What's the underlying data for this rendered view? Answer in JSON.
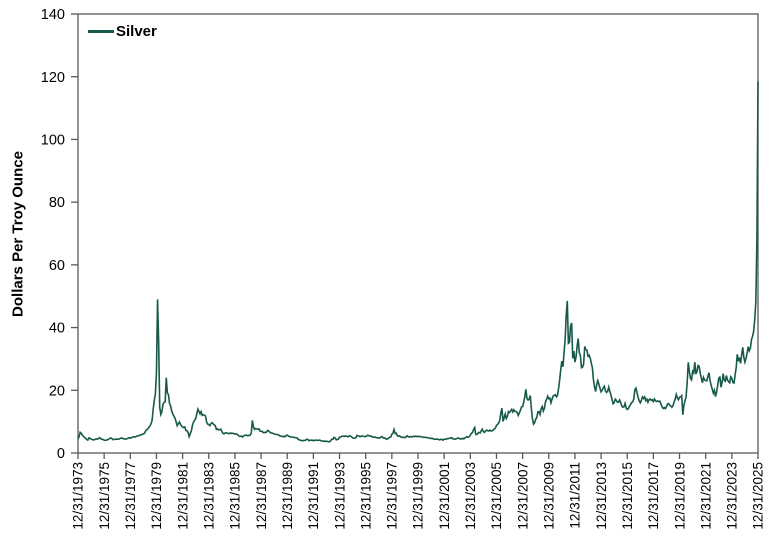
{
  "chart_data": {
    "type": "line",
    "title": "",
    "xlabel": "",
    "ylabel": "Dollars Per Troy Ounce",
    "legend_position": "top-left-inside",
    "grid": false,
    "background_color": "#ffffff",
    "axis_color": "#595959",
    "text_color": "#000000",
    "ylim": [
      0,
      140
    ],
    "yticks": [
      0,
      20,
      40,
      60,
      80,
      100,
      120,
      140
    ],
    "xtick_labels": [
      "12/31/1973",
      "12/31/1975",
      "12/31/1977",
      "12/31/1979",
      "12/31/1981",
      "12/31/1983",
      "12/31/1985",
      "12/31/1987",
      "12/31/1989",
      "12/31/1991",
      "12/31/1993",
      "12/31/1995",
      "12/31/1997",
      "12/31/1999",
      "12/31/2001",
      "12/31/2003",
      "12/31/2005",
      "12/31/2007",
      "12/31/2009",
      "12/31/2011",
      "12/31/2013",
      "12/31/2015",
      "12/31/2017",
      "12/31/2019",
      "12/31/2021",
      "12/31/2023",
      "12/31/2025"
    ],
    "x_start_label": "12/31/1973",
    "x_end_label": "12/31/2025",
    "points_per_year": 12,
    "series": [
      {
        "name": "Silver",
        "color": "#17594a",
        "values": [
          4.5,
          5.2,
          6.6,
          6.3,
          5.7,
          5.3,
          4.9,
          4.7,
          4.3,
          4.1,
          4.8,
          4.7,
          4.4,
          4.3,
          4.2,
          4.2,
          4.4,
          4.5,
          4.4,
          4.7,
          4.9,
          4.5,
          4.4,
          4.3,
          4.1,
          4.0,
          4.1,
          4.2,
          4.4,
          4.6,
          4.8,
          4.6,
          4.3,
          4.3,
          4.4,
          4.4,
          4.4,
          4.4,
          4.5,
          4.7,
          4.8,
          4.7,
          4.5,
          4.5,
          4.4,
          4.6,
          4.7,
          4.9,
          4.7,
          4.9,
          5.0,
          5.2,
          5.1,
          5.2,
          5.4,
          5.4,
          5.6,
          5.6,
          5.9,
          5.9,
          6.1,
          6.3,
          7.0,
          7.4,
          7.6,
          8.2,
          8.6,
          9.3,
          10.4,
          14.0,
          16.8,
          18.8,
          25.5,
          49.0,
          35.5,
          14.5,
          12.3,
          13.2,
          15.6,
          16.1,
          16.4,
          24.0,
          19.2,
          18.6,
          15.8,
          15.0,
          13.4,
          12.4,
          11.8,
          11.1,
          10.0,
          8.7,
          9.3,
          9.9,
          9.2,
          8.6,
          8.3,
          8.1,
          8.3,
          7.2,
          7.1,
          6.5,
          5.2,
          6.2,
          7.0,
          8.8,
          9.9,
          10.4,
          11.0,
          12.4,
          14.0,
          13.3,
          12.5,
          13.2,
          12.0,
          12.2,
          12.1,
          11.8,
          9.9,
          9.2,
          9.1,
          8.7,
          9.4,
          9.7,
          9.3,
          9.0,
          8.7,
          7.5,
          7.7,
          7.4,
          7.4,
          7.6,
          6.9,
          6.3,
          6.1,
          6.4,
          6.5,
          6.3,
          6.2,
          6.2,
          6.4,
          6.2,
          6.3,
          6.2,
          6.0,
          6.1,
          6.0,
          5.7,
          5.3,
          5.3,
          5.4,
          5.1,
          5.4,
          5.7,
          5.7,
          5.6,
          5.5,
          5.6,
          5.7,
          6.4,
          10.4,
          8.3,
          7.5,
          7.8,
          7.7,
          7.6,
          7.7,
          7.0,
          6.9,
          6.9,
          6.5,
          6.6,
          6.5,
          6.7,
          7.2,
          7.0,
          6.7,
          6.4,
          6.4,
          6.2,
          6.1,
          6.0,
          5.9,
          5.9,
          5.8,
          5.5,
          5.4,
          5.3,
          5.2,
          5.3,
          5.2,
          5.6,
          5.7,
          5.4,
          5.3,
          5.1,
          5.1,
          5.1,
          5.0,
          4.9,
          4.9,
          4.8,
          4.4,
          4.2,
          4.1,
          4.0,
          3.9,
          4.0,
          4.0,
          4.1,
          4.4,
          4.3,
          3.9,
          4.1,
          4.1,
          4.1,
          3.9,
          4.1,
          4.1,
          4.1,
          4.0,
          4.1,
          4.1,
          3.9,
          3.8,
          3.8,
          3.7,
          3.8,
          3.7,
          3.7,
          3.6,
          3.6,
          4.0,
          4.4,
          4.4,
          5.0,
          4.8,
          4.2,
          4.3,
          4.4,
          5.1,
          5.1,
          5.3,
          5.4,
          5.3,
          5.4,
          5.4,
          5.3,
          5.2,
          5.5,
          5.4,
          5.2,
          4.8,
          4.7,
          4.7,
          4.9,
          5.6,
          5.5,
          5.4,
          5.2,
          5.4,
          5.4,
          5.3,
          5.3,
          5.2,
          5.5,
          5.7,
          5.5,
          5.4,
          5.4,
          5.1,
          5.0,
          5.1,
          5.0,
          4.9,
          4.8,
          4.8,
          4.8,
          5.1,
          5.2,
          4.8,
          4.8,
          4.7,
          4.4,
          4.5,
          4.7,
          5.0,
          5.1,
          6.0,
          6.3,
          7.5,
          6.2,
          6.3,
          5.5,
          5.3,
          5.5,
          5.2,
          5.0,
          5.0,
          5.0,
          4.9,
          5.1,
          5.5,
          5.2,
          5.1,
          5.3,
          5.1,
          5.2,
          5.3,
          5.2,
          5.4,
          5.2,
          5.3,
          5.2,
          5.3,
          5.1,
          5.1,
          5.0,
          5.0,
          5.0,
          4.9,
          4.9,
          4.8,
          4.7,
          4.6,
          4.7,
          4.5,
          4.4,
          4.4,
          4.4,
          4.4,
          4.3,
          4.2,
          4.4,
          4.3,
          4.1,
          4.4,
          4.4,
          4.4,
          4.6,
          4.6,
          4.7,
          4.8,
          4.9,
          4.5,
          4.5,
          4.4,
          4.5,
          4.7,
          4.8,
          4.6,
          4.5,
          4.5,
          4.7,
          4.5,
          4.8,
          5.0,
          5.2,
          5.0,
          5.2,
          5.7,
          6.3,
          6.5,
          7.5,
          8.1,
          5.9,
          5.9,
          6.3,
          6.6,
          6.4,
          7.1,
          7.6,
          6.8,
          6.6,
          7.0,
          7.3,
          7.1,
          7.0,
          7.3,
          7.0,
          7.1,
          7.3,
          7.7,
          7.9,
          8.8,
          9.1,
          9.5,
          10.4,
          12.8,
          14.3,
          10.1,
          11.2,
          12.4,
          11.0,
          11.7,
          13.2,
          12.9,
          13.4,
          13.9,
          13.1,
          13.8,
          13.3,
          13.2,
          12.9,
          12.0,
          12.8,
          13.6,
          14.7,
          14.8,
          16.2,
          18.0,
          20.3,
          17.4,
          16.9,
          17.1,
          18.3,
          14.3,
          11.0,
          9.2,
          9.6,
          10.8,
          11.3,
          13.1,
          13.2,
          12.3,
          14.1,
          14.8,
          13.4,
          14.3,
          16.3,
          17.1,
          18.1,
          17.3,
          17.5,
          16.0,
          17.2,
          18.2,
          18.4,
          18.6,
          17.9,
          18.4,
          20.6,
          23.3,
          26.7,
          29.3,
          27.5,
          31.9,
          36.0,
          44.0,
          48.5,
          35.0,
          35.3,
          40.5,
          41.5,
          30.2,
          32.5,
          29.0,
          30.5,
          34.0,
          36.5,
          32.0,
          31.1,
          27.2,
          27.4,
          28.4,
          34.0,
          33.0,
          32.8,
          30.9,
          31.2,
          30.3,
          28.7,
          27.2,
          23.3,
          21.1,
          19.6,
          21.8,
          23.1,
          21.9,
          20.7,
          19.5,
          20.0,
          20.8,
          21.3,
          19.8,
          19.3,
          19.7,
          21.0,
          19.7,
          18.6,
          17.2,
          15.7,
          16.0,
          17.2,
          16.8,
          16.2,
          16.2,
          16.9,
          16.1,
          15.0,
          14.6,
          14.7,
          15.8,
          14.4,
          13.9,
          14.1,
          14.9,
          15.4,
          16.1,
          16.3,
          17.2,
          20.2,
          20.7,
          19.2,
          17.7,
          16.6,
          16.0,
          16.8,
          17.9,
          17.4,
          17.9,
          16.7,
          17.2,
          16.2,
          17.0,
          17.2,
          16.8,
          17.0,
          16.4,
          17.2,
          16.6,
          16.4,
          16.6,
          16.4,
          16.5,
          15.5,
          14.7,
          14.2,
          14.5,
          14.2,
          14.8,
          15.6,
          15.8,
          15.2,
          15.0,
          14.6,
          15.1,
          16.2,
          17.2,
          18.7,
          17.6,
          17.0,
          17.8,
          17.9,
          18.3,
          12.2,
          15.2,
          16.6,
          17.9,
          22.5,
          28.9,
          26.0,
          23.8,
          23.3,
          26.0,
          25.5,
          29.0,
          25.2,
          26.0,
          27.9,
          27.6,
          25.4,
          23.9,
          22.4,
          24.1,
          23.3,
          23.1,
          23.0,
          24.4,
          25.6,
          23.1,
          21.6,
          20.4,
          19.1,
          20.0,
          18.0,
          19.3,
          21.6,
          23.9,
          24.2,
          21.0,
          22.5,
          25.3,
          23.2,
          22.9,
          24.7,
          23.3,
          22.7,
          22.4,
          24.3,
          23.8,
          22.5,
          22.3,
          24.9,
          27.3,
          31.5,
          29.3,
          30.4,
          28.6,
          31.3,
          33.7,
          30.5,
          29.0,
          30.2,
          31.8,
          33.9,
          32.6,
          33.4,
          36.1,
          37.2,
          38.8,
          42.5,
          48.0,
          68.0,
          118.5
        ]
      }
    ]
  }
}
